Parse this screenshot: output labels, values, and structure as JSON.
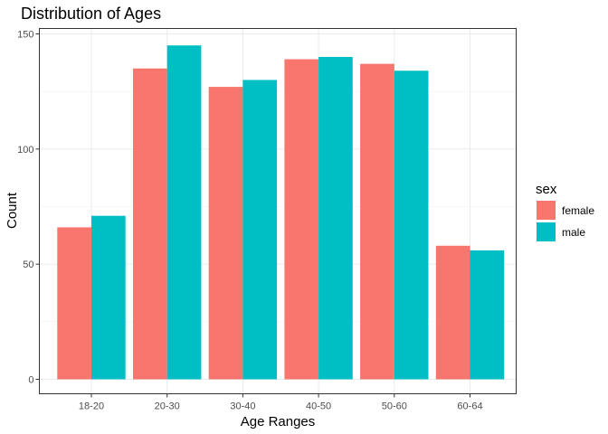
{
  "chart_data": {
    "type": "bar",
    "title": "Distribution of Ages",
    "xlabel": "Age Ranges",
    "ylabel": "Count",
    "categories": [
      "18-20",
      "20-30",
      "30-40",
      "40-50",
      "50-60",
      "60-64"
    ],
    "series": [
      {
        "name": "female",
        "color": "#F8766D",
        "values": [
          66,
          135,
          127,
          139,
          137,
          58
        ]
      },
      {
        "name": "male",
        "color": "#00BFC4",
        "values": [
          71,
          145,
          130,
          140,
          134,
          56
        ]
      }
    ],
    "ylim": [
      0,
      150
    ],
    "yticks": [
      0,
      50,
      100,
      150
    ],
    "grid": true,
    "legend": {
      "title": "sex",
      "position": "right"
    }
  }
}
